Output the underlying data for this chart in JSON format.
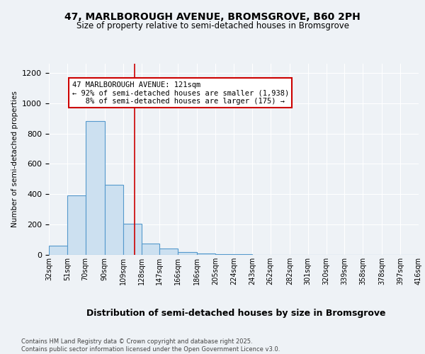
{
  "title_line1": "47, MARLBOROUGH AVENUE, BROMSGROVE, B60 2PH",
  "title_line2": "Size of property relative to semi-detached houses in Bromsgrove",
  "xlabel": "Distribution of semi-detached houses by size in Bromsgrove",
  "ylabel": "Number of semi-detached properties",
  "bin_edges": [
    32,
    51,
    70,
    90,
    109,
    128,
    147,
    166,
    186,
    205,
    224,
    243,
    262,
    282,
    301,
    320,
    339,
    358,
    378,
    397,
    416
  ],
  "bar_heights": [
    60,
    390,
    880,
    460,
    205,
    75,
    40,
    20,
    10,
    5,
    5,
    2,
    2,
    1,
    1,
    1,
    0,
    0,
    0,
    0
  ],
  "bar_color": "#cce0f0",
  "bar_edgecolor": "#5599cc",
  "property_size": 121,
  "vline_color": "#cc0000",
  "annotation_line1": "47 MARLBOROUGH AVENUE: 121sqm",
  "annotation_line2": "← 92% of semi-detached houses are smaller (1,938)",
  "annotation_line3": "   8% of semi-detached houses are larger (175) →",
  "annotation_box_color": "#ffffff",
  "annotation_box_edgecolor": "#cc0000",
  "ylim": [
    0,
    1260
  ],
  "yticks": [
    0,
    200,
    400,
    600,
    800,
    1000,
    1200
  ],
  "tick_labels": [
    "32sqm",
    "51sqm",
    "70sqm",
    "90sqm",
    "109sqm",
    "128sqm",
    "147sqm",
    "166sqm",
    "186sqm",
    "205sqm",
    "224sqm",
    "243sqm",
    "262sqm",
    "282sqm",
    "301sqm",
    "320sqm",
    "339sqm",
    "358sqm",
    "378sqm",
    "397sqm",
    "416sqm"
  ],
  "footer_text": "Contains HM Land Registry data © Crown copyright and database right 2025.\nContains public sector information licensed under the Open Government Licence v3.0.",
  "background_color": "#eef2f6",
  "plot_background_color": "#eef2f6",
  "grid_color": "#ffffff"
}
